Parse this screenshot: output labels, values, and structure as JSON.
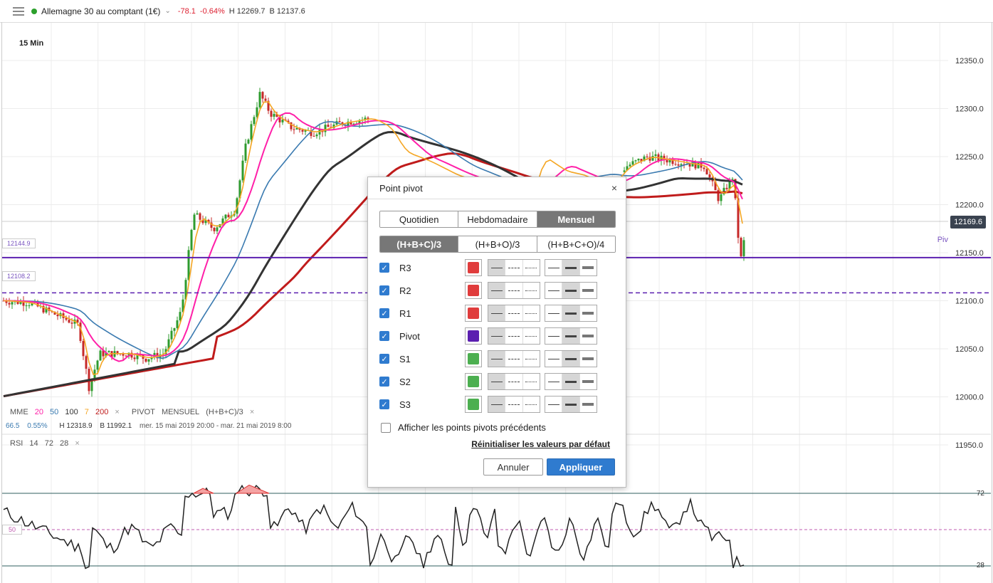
{
  "header": {
    "instrument": "Allemagne 30 au comptant (1€)",
    "change": "-78.1",
    "change_pct": "-0.64%",
    "high": "H 12269.7",
    "bid": "B 12137.6"
  },
  "timeframe": "15 Min",
  "price_axis": {
    "labels": [
      "12350.0",
      "12300.0",
      "12250.0",
      "12200.0",
      "12150.0",
      "12100.0",
      "12050.0",
      "12000.0",
      "11950.0"
    ],
    "current_price": "12169.6",
    "pivot_label": "Piv"
  },
  "levels": {
    "pivot_tag": "12144.9",
    "s1_tag": "12108.2"
  },
  "legend": {
    "ma_name": "MME",
    "ma_periods": [
      "20",
      "50",
      "100",
      "7",
      "200"
    ],
    "pivot_name": "PIVOT",
    "pivot_period": "MENSUEL",
    "pivot_formula": "(H+B+C)/3",
    "close": "×"
  },
  "stats": {
    "v1": "66.5",
    "v2": "0.55%",
    "high": "H 12318.9",
    "low": "B 11992.1",
    "range": "mer. 15 mai 2019 20:00 - mar. 21 mai 2019 8:00"
  },
  "rsi": {
    "name": "RSI",
    "params": [
      "14",
      "72",
      "28"
    ],
    "close": "×",
    "levels": [
      "72",
      "28"
    ],
    "mid": "50"
  },
  "dialog": {
    "title": "Point pivot",
    "close": "×",
    "periods": [
      "Quotidien",
      "Hebdomadaire",
      "Mensuel"
    ],
    "formulas": [
      "(H+B+C)/3",
      "(H+B+O)/3",
      "(H+B+C+O)/4"
    ],
    "rows": [
      {
        "label": "R3",
        "color": "#e03c3c"
      },
      {
        "label": "R2",
        "color": "#e03c3c"
      },
      {
        "label": "R1",
        "color": "#e03c3c"
      },
      {
        "label": "Pivot",
        "color": "#5b1fb0"
      },
      {
        "label": "S1",
        "color": "#4caf50"
      },
      {
        "label": "S2",
        "color": "#4caf50"
      },
      {
        "label": "S3",
        "color": "#4caf50"
      }
    ],
    "show_previous": "Afficher les points pivots précédents",
    "reset": "Réinitialiser les valeurs par défaut",
    "cancel": "Annuler",
    "apply": "Appliquer"
  },
  "colors": {
    "ma20": "#ff1fa8",
    "ma50": "#3a7ab0",
    "ma100": "#333333",
    "ma7": "#f5a623",
    "ma200": "#c01b1b",
    "pivot": "#5b1fb0",
    "accent": "#2f7bcf"
  }
}
